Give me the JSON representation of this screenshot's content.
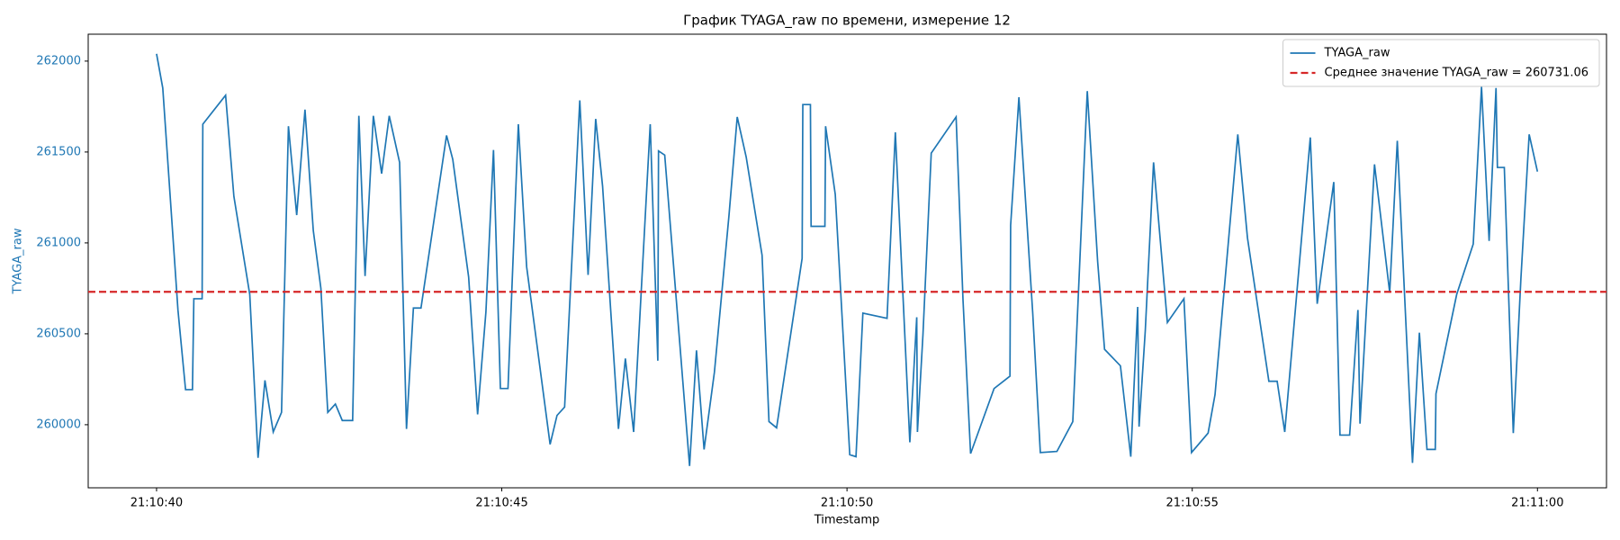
{
  "chart_data": {
    "type": "line",
    "title": "График TYAGA_raw по времени, измерение 12",
    "x_label": "Timestamp",
    "y_label": "TYAGA_raw",
    "y_axis_color": "#1f77b4",
    "x": [
      "21:10:40.00",
      "21:10:40.09",
      "21:10:40.31",
      "21:10:40.42",
      "21:10:40.52",
      "21:10:40.54",
      "21:10:40.66",
      "21:10:40.67",
      "21:10:41.00",
      "21:10:41.12",
      "21:10:41.35",
      "21:10:41.47",
      "21:10:41.57",
      "21:10:41.69",
      "21:10:41.81",
      "21:10:41.91",
      "21:10:42.03",
      "21:10:42.15",
      "21:10:42.27",
      "21:10:42.38",
      "21:10:42.48",
      "21:10:42.59",
      "21:10:42.69",
      "21:10:42.84",
      "21:10:42.93",
      "21:10:43.02",
      "21:10:43.14",
      "21:10:43.26",
      "21:10:43.37",
      "21:10:43.52",
      "21:10:43.62",
      "21:10:43.72",
      "21:10:43.83",
      "21:10:44.20",
      "21:10:44.29",
      "21:10:44.52",
      "21:10:44.65",
      "21:10:44.77",
      "21:10:44.88",
      "21:10:44.98",
      "21:10:45.09",
      "21:10:45.24",
      "21:10:45.36",
      "21:10:45.70",
      "21:10:45.80",
      "21:10:45.91",
      "21:10:46.13",
      "21:10:46.25",
      "21:10:46.36",
      "21:10:46.46",
      "21:10:46.69",
      "21:10:46.79",
      "21:10:46.91",
      "21:10:47.15",
      "21:10:47.26",
      "21:10:47.27",
      "21:10:47.36",
      "21:10:47.72",
      "21:10:47.82",
      "21:10:47.93",
      "21:10:48.08",
      "21:10:48.29",
      "21:10:48.41",
      "21:10:48.54",
      "21:10:48.77",
      "21:10:48.87",
      "21:10:48.98",
      "21:10:49.35",
      "21:10:49.36",
      "21:10:49.47",
      "21:10:49.48",
      "21:10:49.68",
      "21:10:49.69",
      "21:10:49.83",
      "21:10:50.04",
      "21:10:50.13",
      "21:10:50.23",
      "21:10:50.58",
      "21:10:50.70",
      "21:10:50.91",
      "21:10:51.01",
      "21:10:51.02",
      "21:10:51.10",
      "21:10:51.22",
      "21:10:51.58",
      "21:10:51.68",
      "21:10:51.79",
      "21:10:52.13",
      "21:10:52.36",
      "21:10:52.37",
      "21:10:52.49",
      "21:10:52.69",
      "21:10:52.80",
      "21:10:53.04",
      "21:10:53.27",
      "21:10:53.48",
      "21:10:53.63",
      "21:10:53.73",
      "21:10:53.96",
      "21:10:54.11",
      "21:10:54.21",
      "21:10:54.23",
      "21:10:54.32",
      "21:10:54.44",
      "21:10:54.64",
      "21:10:54.88",
      "21:10:54.99",
      "21:10:55.23",
      "21:10:55.33",
      "21:10:55.66",
      "21:10:55.80",
      "21:10:56.11",
      "21:10:56.23",
      "21:10:56.34",
      "21:10:56.71",
      "21:10:56.81",
      "21:10:57.05",
      "21:10:57.14",
      "21:10:57.28",
      "21:10:57.40",
      "21:10:57.43",
      "21:10:57.64",
      "21:10:57.86",
      "21:10:57.97",
      "21:10:58.19",
      "21:10:58.29",
      "21:10:58.40",
      "21:10:58.52",
      "21:10:58.53",
      "21:10:58.83",
      "21:10:59.07",
      "21:10:59.19",
      "21:10:59.30",
      "21:10:59.40",
      "21:10:59.42",
      "21:10:59.52",
      "21:10:59.65",
      "21:10:59.76",
      "21:10:59.88",
      "21:11:00.00"
    ],
    "series": [
      {
        "name": "TYAGA_raw",
        "color": "#1f77b4",
        "values": [
          262040,
          261852,
          260631,
          260193,
          260193,
          260693,
          260693,
          261653,
          261812,
          261256,
          260716,
          259818,
          260244,
          259960,
          260068,
          261642,
          261153,
          261733,
          261068,
          260750,
          260068,
          260114,
          260023,
          260023,
          261699,
          260818,
          261699,
          261381,
          261699,
          261443,
          259977,
          260642,
          260642,
          261591,
          261460,
          260812,
          260057,
          260619,
          261511,
          260199,
          260199,
          261653,
          260869,
          259892,
          260051,
          260097,
          261784,
          260824,
          261682,
          261312,
          259977,
          260364,
          259960,
          261653,
          260352,
          261506,
          261483,
          259773,
          260409,
          259864,
          260290,
          261148,
          261693,
          261472,
          260932,
          260017,
          259983,
          260915,
          261761,
          261761,
          261091,
          261091,
          261642,
          261267,
          259835,
          259824,
          260614,
          260585,
          261608,
          259903,
          260591,
          259960,
          260494,
          261494,
          261693,
          260687,
          259841,
          260199,
          260267,
          261097,
          261801,
          260614,
          259847,
          259853,
          260017,
          261835,
          260898,
          260415,
          260324,
          259824,
          260648,
          259989,
          260517,
          261443,
          260562,
          260693,
          259847,
          259954,
          260165,
          261597,
          261028,
          260239,
          260239,
          259960,
          261580,
          260665,
          261335,
          259943,
          259943,
          260631,
          260006,
          261432,
          260727,
          261562,
          259790,
          260506,
          259864,
          259864,
          260170,
          260716,
          260994,
          261858,
          261011,
          261852,
          261415,
          261415,
          259954,
          260801,
          261597,
          261392
        ]
      }
    ],
    "hlines": [
      {
        "name": "Среднее значение TYAGA_raw = 260731.06",
        "value": 260731.06,
        "color": "#d62728",
        "dashed": true
      }
    ],
    "xlim": [
      "21:10:39.01",
      "21:11:01.00"
    ],
    "xticks": [
      "21:10:40",
      "21:10:45",
      "21:10:50",
      "21:10:55",
      "21:11:00"
    ],
    "ylim": [
      259653,
      262148
    ],
    "yticks": [
      260000,
      260500,
      261000,
      261500,
      262000
    ],
    "legend": "upper right",
    "grid": false
  }
}
